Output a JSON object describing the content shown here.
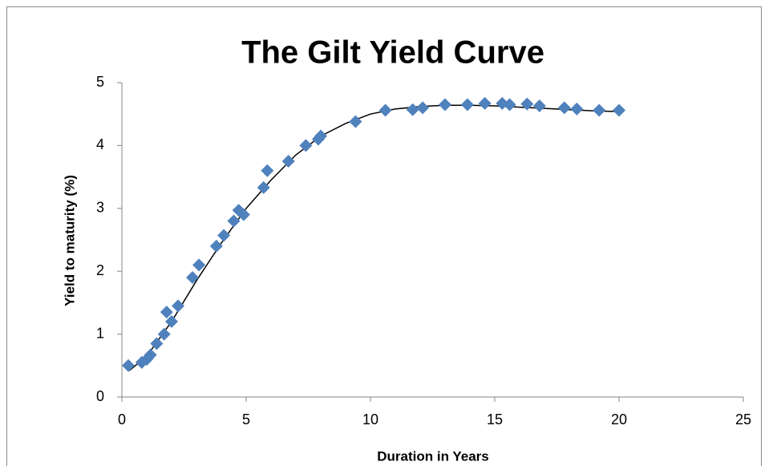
{
  "chart_data": {
    "type": "scatter",
    "title": "The Gilt Yield Curve",
    "xlabel": "Duration in Years",
    "ylabel": "Yield to maturity (%)",
    "xlim": [
      0,
      25
    ],
    "xticks": [
      0,
      5,
      10,
      15,
      20,
      25
    ],
    "ylim": [
      0,
      5
    ],
    "yticks": [
      0,
      1,
      2,
      3,
      4,
      5
    ],
    "points": {
      "color": "#4f81bd",
      "marker": "diamond",
      "x": [
        0.26,
        0.8,
        1.0,
        1.15,
        1.4,
        1.7,
        1.8,
        2.0,
        2.26,
        2.84,
        3.1,
        3.8,
        4.1,
        4.5,
        4.7,
        4.9,
        5.7,
        5.85,
        6.7,
        7.4,
        7.9,
        8.0,
        9.4,
        10.6,
        11.7,
        12.1,
        13.0,
        13.9,
        14.6,
        15.3,
        15.6,
        16.3,
        16.8,
        17.8,
        18.3,
        19.2,
        20.0
      ],
      "values": [
        0.5,
        0.55,
        0.6,
        0.67,
        0.85,
        1.0,
        1.35,
        1.2,
        1.45,
        1.9,
        2.1,
        2.4,
        2.57,
        2.8,
        2.97,
        2.9,
        3.33,
        3.6,
        3.75,
        4.0,
        4.1,
        4.15,
        4.38,
        4.56,
        4.57,
        4.6,
        4.65,
        4.65,
        4.67,
        4.67,
        4.65,
        4.66,
        4.63,
        4.6,
        4.58,
        4.56,
        4.56
      ]
    },
    "trend": {
      "color": "#000000",
      "x": [
        0.3,
        1,
        2,
        3,
        4,
        5,
        6,
        7,
        8,
        9,
        10,
        11,
        12,
        13,
        14,
        15,
        16,
        17,
        18,
        19,
        20
      ],
      "values": [
        0.42,
        0.65,
        1.2,
        1.85,
        2.45,
        3.0,
        3.45,
        3.85,
        4.15,
        4.35,
        4.5,
        4.58,
        4.62,
        4.64,
        4.64,
        4.63,
        4.61,
        4.59,
        4.57,
        4.55,
        4.54
      ]
    }
  }
}
